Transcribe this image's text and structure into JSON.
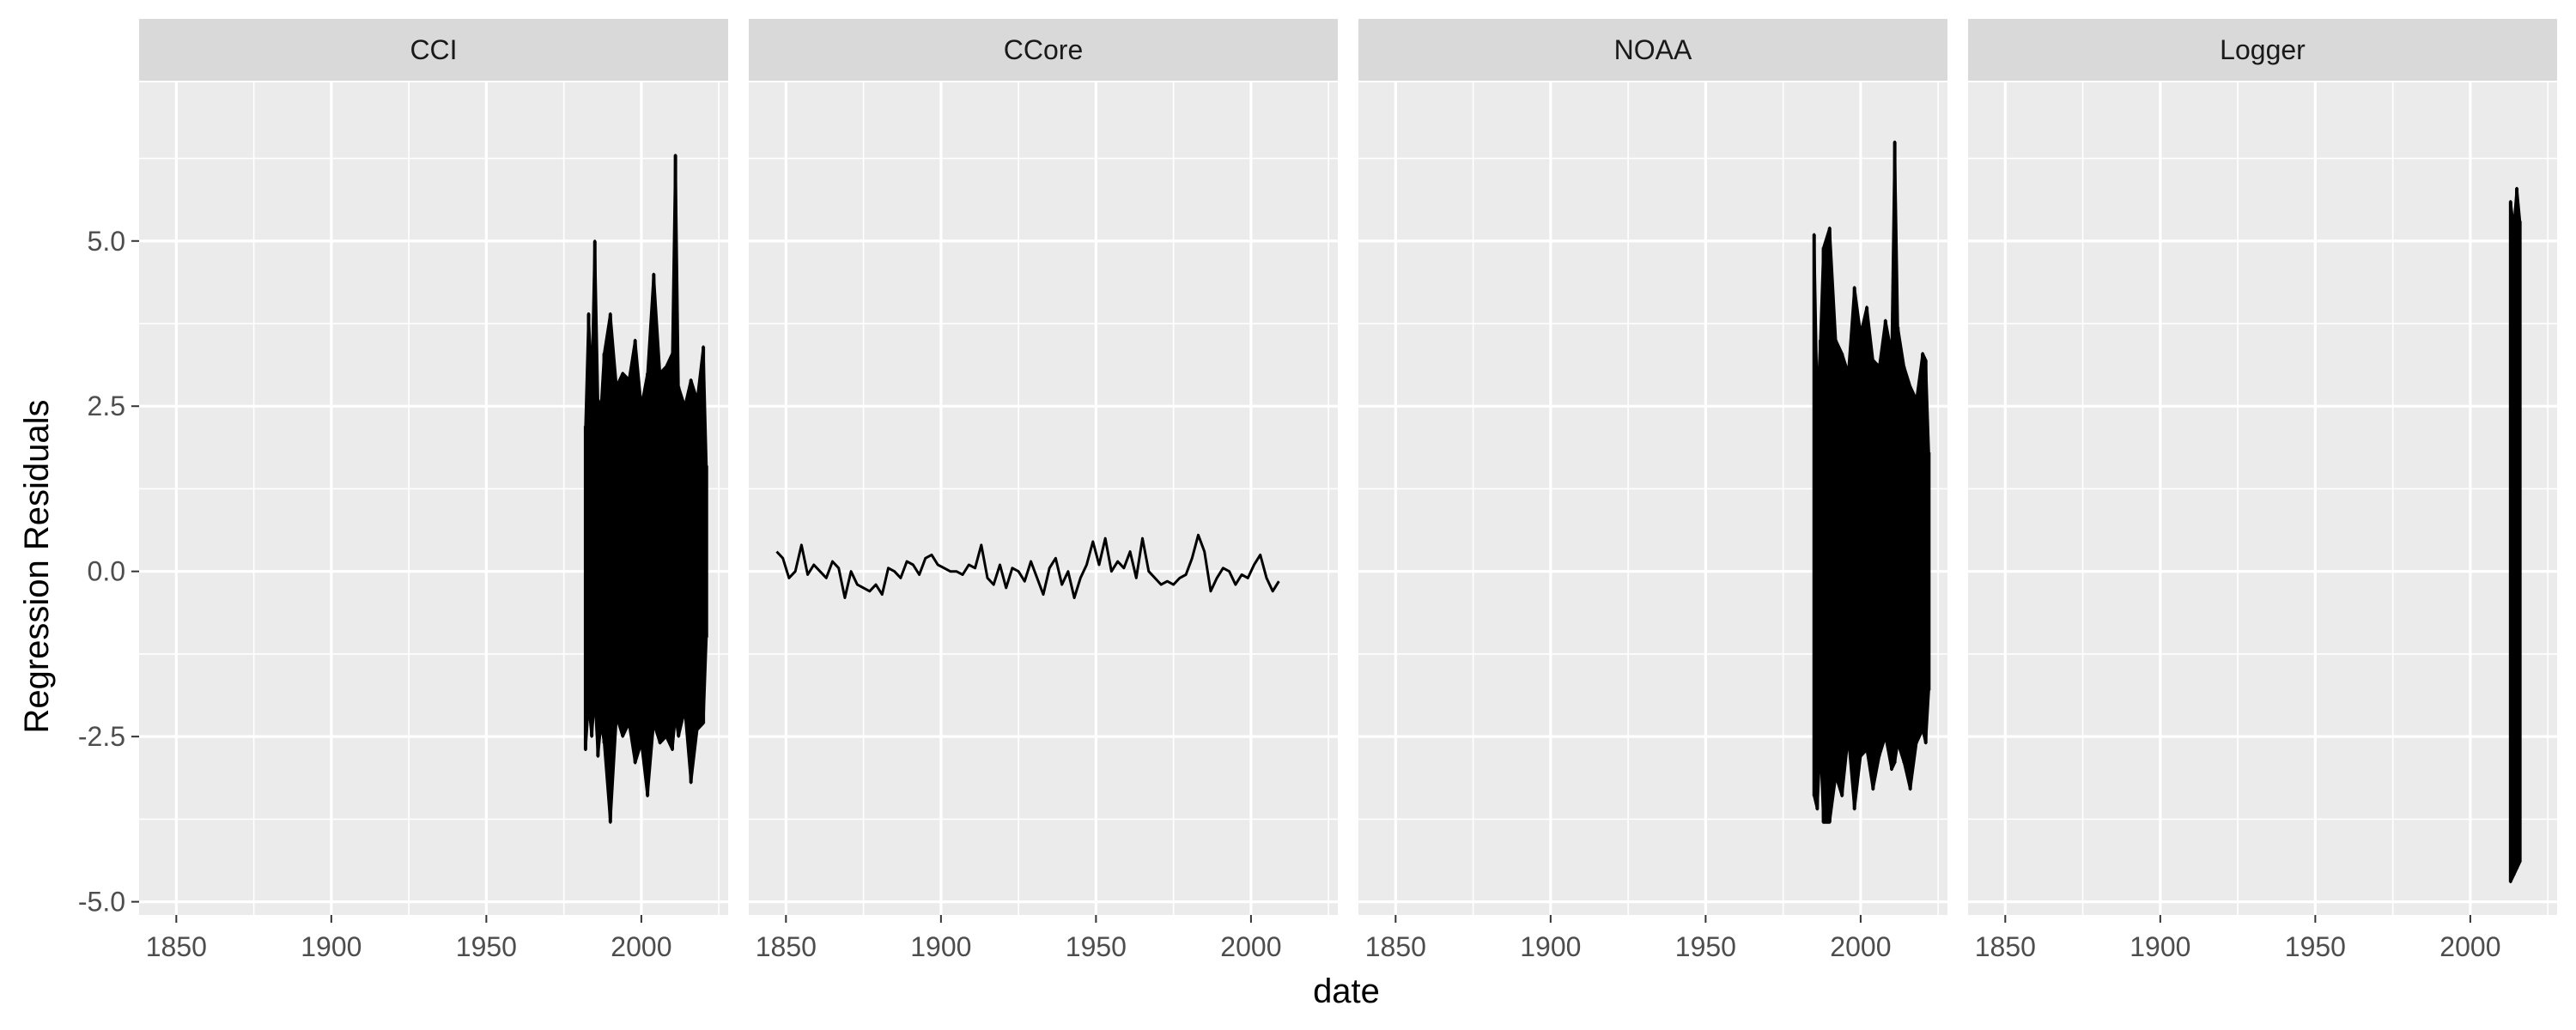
{
  "chart_data": {
    "type": "line",
    "layout": "facet-1x4",
    "xlabel": "date",
    "ylabel": "Regression Residuals",
    "xlim": [
      1838,
      2028
    ],
    "ylim": [
      -5.2,
      7.4
    ],
    "x_ticks": [
      1850,
      1900,
      1950,
      2000
    ],
    "x_tick_labels": [
      "1850",
      "1900",
      "1950",
      "2000"
    ],
    "x_minor_ticks": [
      1875,
      1925,
      1975,
      2025
    ],
    "y_ticks": [
      -5,
      -2.5,
      0,
      2.5,
      5
    ],
    "y_tick_labels": [
      "-5.0",
      "-2.5",
      "0.0",
      "2.5",
      "5.0"
    ],
    "y_minor_ticks": [
      -3.75,
      -1.25,
      1.25,
      3.75,
      6.25
    ],
    "grid": true,
    "line_color": "#000000",
    "panel_background": "#ebebeb",
    "strip_background": "#d9d9d9",
    "panels": [
      {
        "label": "CCI",
        "series": {
          "x": [
            1982,
            1983,
            1984,
            1985,
            1986,
            1987,
            1988,
            1990,
            1992,
            1994,
            1996,
            1998,
            2000,
            2002,
            2004,
            2006,
            2008,
            2010,
            2011,
            2012,
            2014,
            2016,
            2018,
            2020,
            2021
          ],
          "ymax": [
            2.2,
            3.9,
            2.8,
            5.0,
            2.6,
            2.5,
            3.3,
            3.9,
            2.8,
            3.0,
            2.9,
            3.5,
            2.5,
            3.0,
            4.5,
            3.0,
            3.1,
            3.3,
            6.3,
            2.8,
            2.5,
            2.9,
            2.6,
            3.4,
            1.6
          ],
          "ymin": [
            -2.7,
            -2.0,
            -2.5,
            -1.9,
            -2.8,
            -2.3,
            -2.6,
            -3.8,
            -2.2,
            -2.5,
            -2.3,
            -2.9,
            -2.6,
            -3.4,
            -2.3,
            -2.6,
            -2.5,
            -2.7,
            -2.2,
            -2.5,
            -2.1,
            -3.2,
            -2.4,
            -2.3,
            -1.0
          ]
        }
      },
      {
        "label": "CCore",
        "series": {
          "x": [
            1847,
            1849,
            1851,
            1853,
            1855,
            1857,
            1859,
            1861,
            1863,
            1865,
            1867,
            1869,
            1871,
            1873,
            1875,
            1877,
            1879,
            1881,
            1883,
            1885,
            1887,
            1889,
            1891,
            1893,
            1895,
            1897,
            1899,
            1901,
            1903,
            1905,
            1907,
            1909,
            1911,
            1913,
            1915,
            1917,
            1919,
            1921,
            1923,
            1925,
            1927,
            1929,
            1931,
            1933,
            1935,
            1937,
            1939,
            1941,
            1943,
            1945,
            1947,
            1949,
            1951,
            1953,
            1955,
            1957,
            1959,
            1961,
            1963,
            1965,
            1967,
            1969,
            1971,
            1973,
            1975,
            1977,
            1979,
            1981,
            1983,
            1985,
            1987,
            1989,
            1991,
            1993,
            1995,
            1997,
            1999,
            2001,
            2003,
            2005,
            2007,
            2009
          ],
          "y": [
            0.3,
            0.2,
            -0.1,
            0.0,
            0.4,
            -0.05,
            0.1,
            0.0,
            -0.1,
            0.15,
            0.05,
            -0.4,
            0.0,
            -0.2,
            -0.25,
            -0.3,
            -0.2,
            -0.35,
            0.05,
            0.0,
            -0.1,
            0.15,
            0.1,
            -0.05,
            0.2,
            0.25,
            0.1,
            0.05,
            0.0,
            0.0,
            -0.05,
            0.1,
            0.05,
            0.4,
            -0.1,
            -0.2,
            0.1,
            -0.25,
            0.05,
            0.0,
            -0.15,
            0.15,
            -0.1,
            -0.35,
            0.05,
            0.2,
            -0.2,
            0.0,
            -0.4,
            -0.1,
            0.1,
            0.45,
            0.1,
            0.5,
            0.0,
            0.15,
            0.05,
            0.3,
            -0.1,
            0.5,
            0.0,
            -0.1,
            -0.2,
            -0.15,
            -0.2,
            -0.1,
            -0.05,
            0.2,
            0.55,
            0.3,
            -0.3,
            -0.1,
            0.05,
            0.0,
            -0.2,
            -0.05,
            -0.1,
            0.1,
            0.25,
            -0.1,
            -0.3,
            -0.15
          ]
        }
      },
      {
        "label": "NOAA",
        "series": {
          "x": [
            1985,
            1986,
            1987,
            1988,
            1990,
            1992,
            1994,
            1996,
            1998,
            2000,
            2002,
            2004,
            2006,
            2008,
            2010,
            2011,
            2012,
            2014,
            2016,
            2018,
            2020,
            2021,
            2022
          ],
          "ymax": [
            5.1,
            2.5,
            3.5,
            4.9,
            5.2,
            3.5,
            3.3,
            3.0,
            4.3,
            3.6,
            4.0,
            3.2,
            3.1,
            3.8,
            3.3,
            6.5,
            3.7,
            3.1,
            2.8,
            2.6,
            3.3,
            3.2,
            1.8
          ],
          "ymin": [
            -3.4,
            -3.6,
            -2.6,
            -3.8,
            -3.8,
            -3.1,
            -3.4,
            -2.5,
            -3.6,
            -2.8,
            -2.7,
            -3.3,
            -2.8,
            -2.5,
            -3.0,
            -2.9,
            -2.6,
            -2.9,
            -3.3,
            -2.6,
            -2.4,
            -2.6,
            -1.8
          ]
        }
      },
      {
        "label": "Logger",
        "series": {
          "x": [
            2013,
            2014,
            2015,
            2016
          ],
          "ymax": [
            5.6,
            5.2,
            5.8,
            5.3
          ],
          "ymin": [
            -4.7,
            -4.6,
            -4.5,
            -4.4
          ]
        }
      }
    ]
  }
}
